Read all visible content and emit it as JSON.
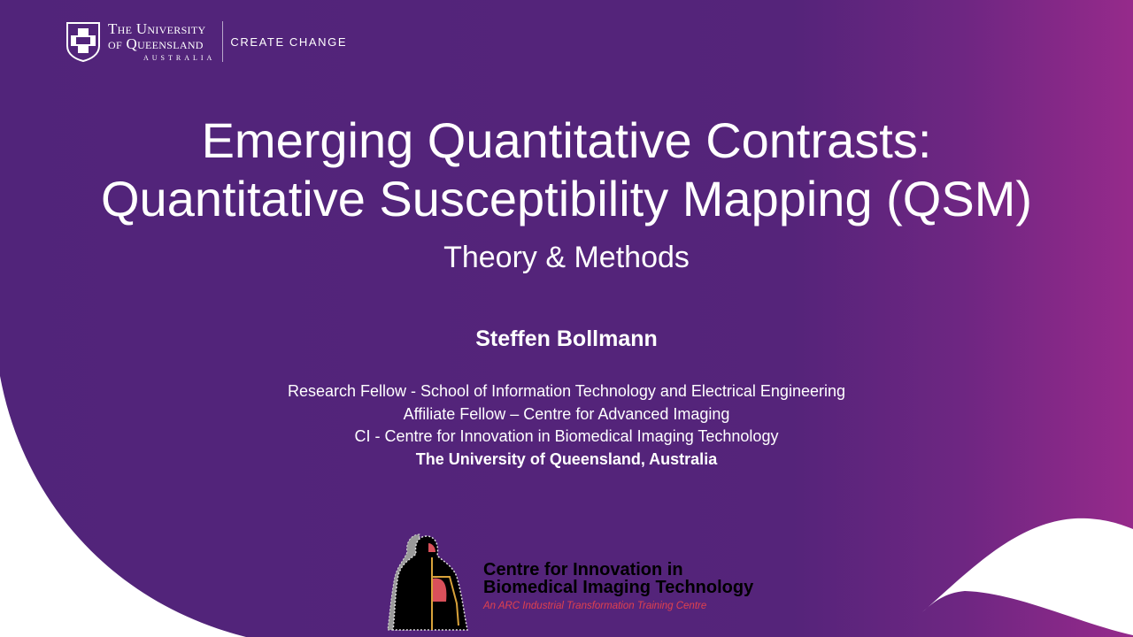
{
  "logo": {
    "university_line1": "The University",
    "university_line2": "of Queensland",
    "university_line3": "AUSTRALIA",
    "tagline": "CREATE CHANGE"
  },
  "slide": {
    "title_line1": "Emerging Quantitative Contrasts:",
    "title_line2": "Quantitative Susceptibility Mapping (QSM)",
    "subtitle": "Theory & Methods",
    "author": "Steffen Bollmann",
    "affiliations": [
      "Research Fellow - School of Information Technology and Electrical Engineering",
      "Affiliate Fellow – Centre for Advanced Imaging",
      "CI - Centre for Innovation in Biomedical Imaging Technology",
      "The University of Queensland, Australia"
    ]
  },
  "cibit": {
    "line1": "Centre for Innovation in",
    "line2": "Biomedical Imaging Technology",
    "tagline": "An ARC Industrial Transformation Training Centre"
  },
  "colors": {
    "purple": "#51247a",
    "magenta": "#962a8b",
    "accent_red": "#e0414e"
  }
}
